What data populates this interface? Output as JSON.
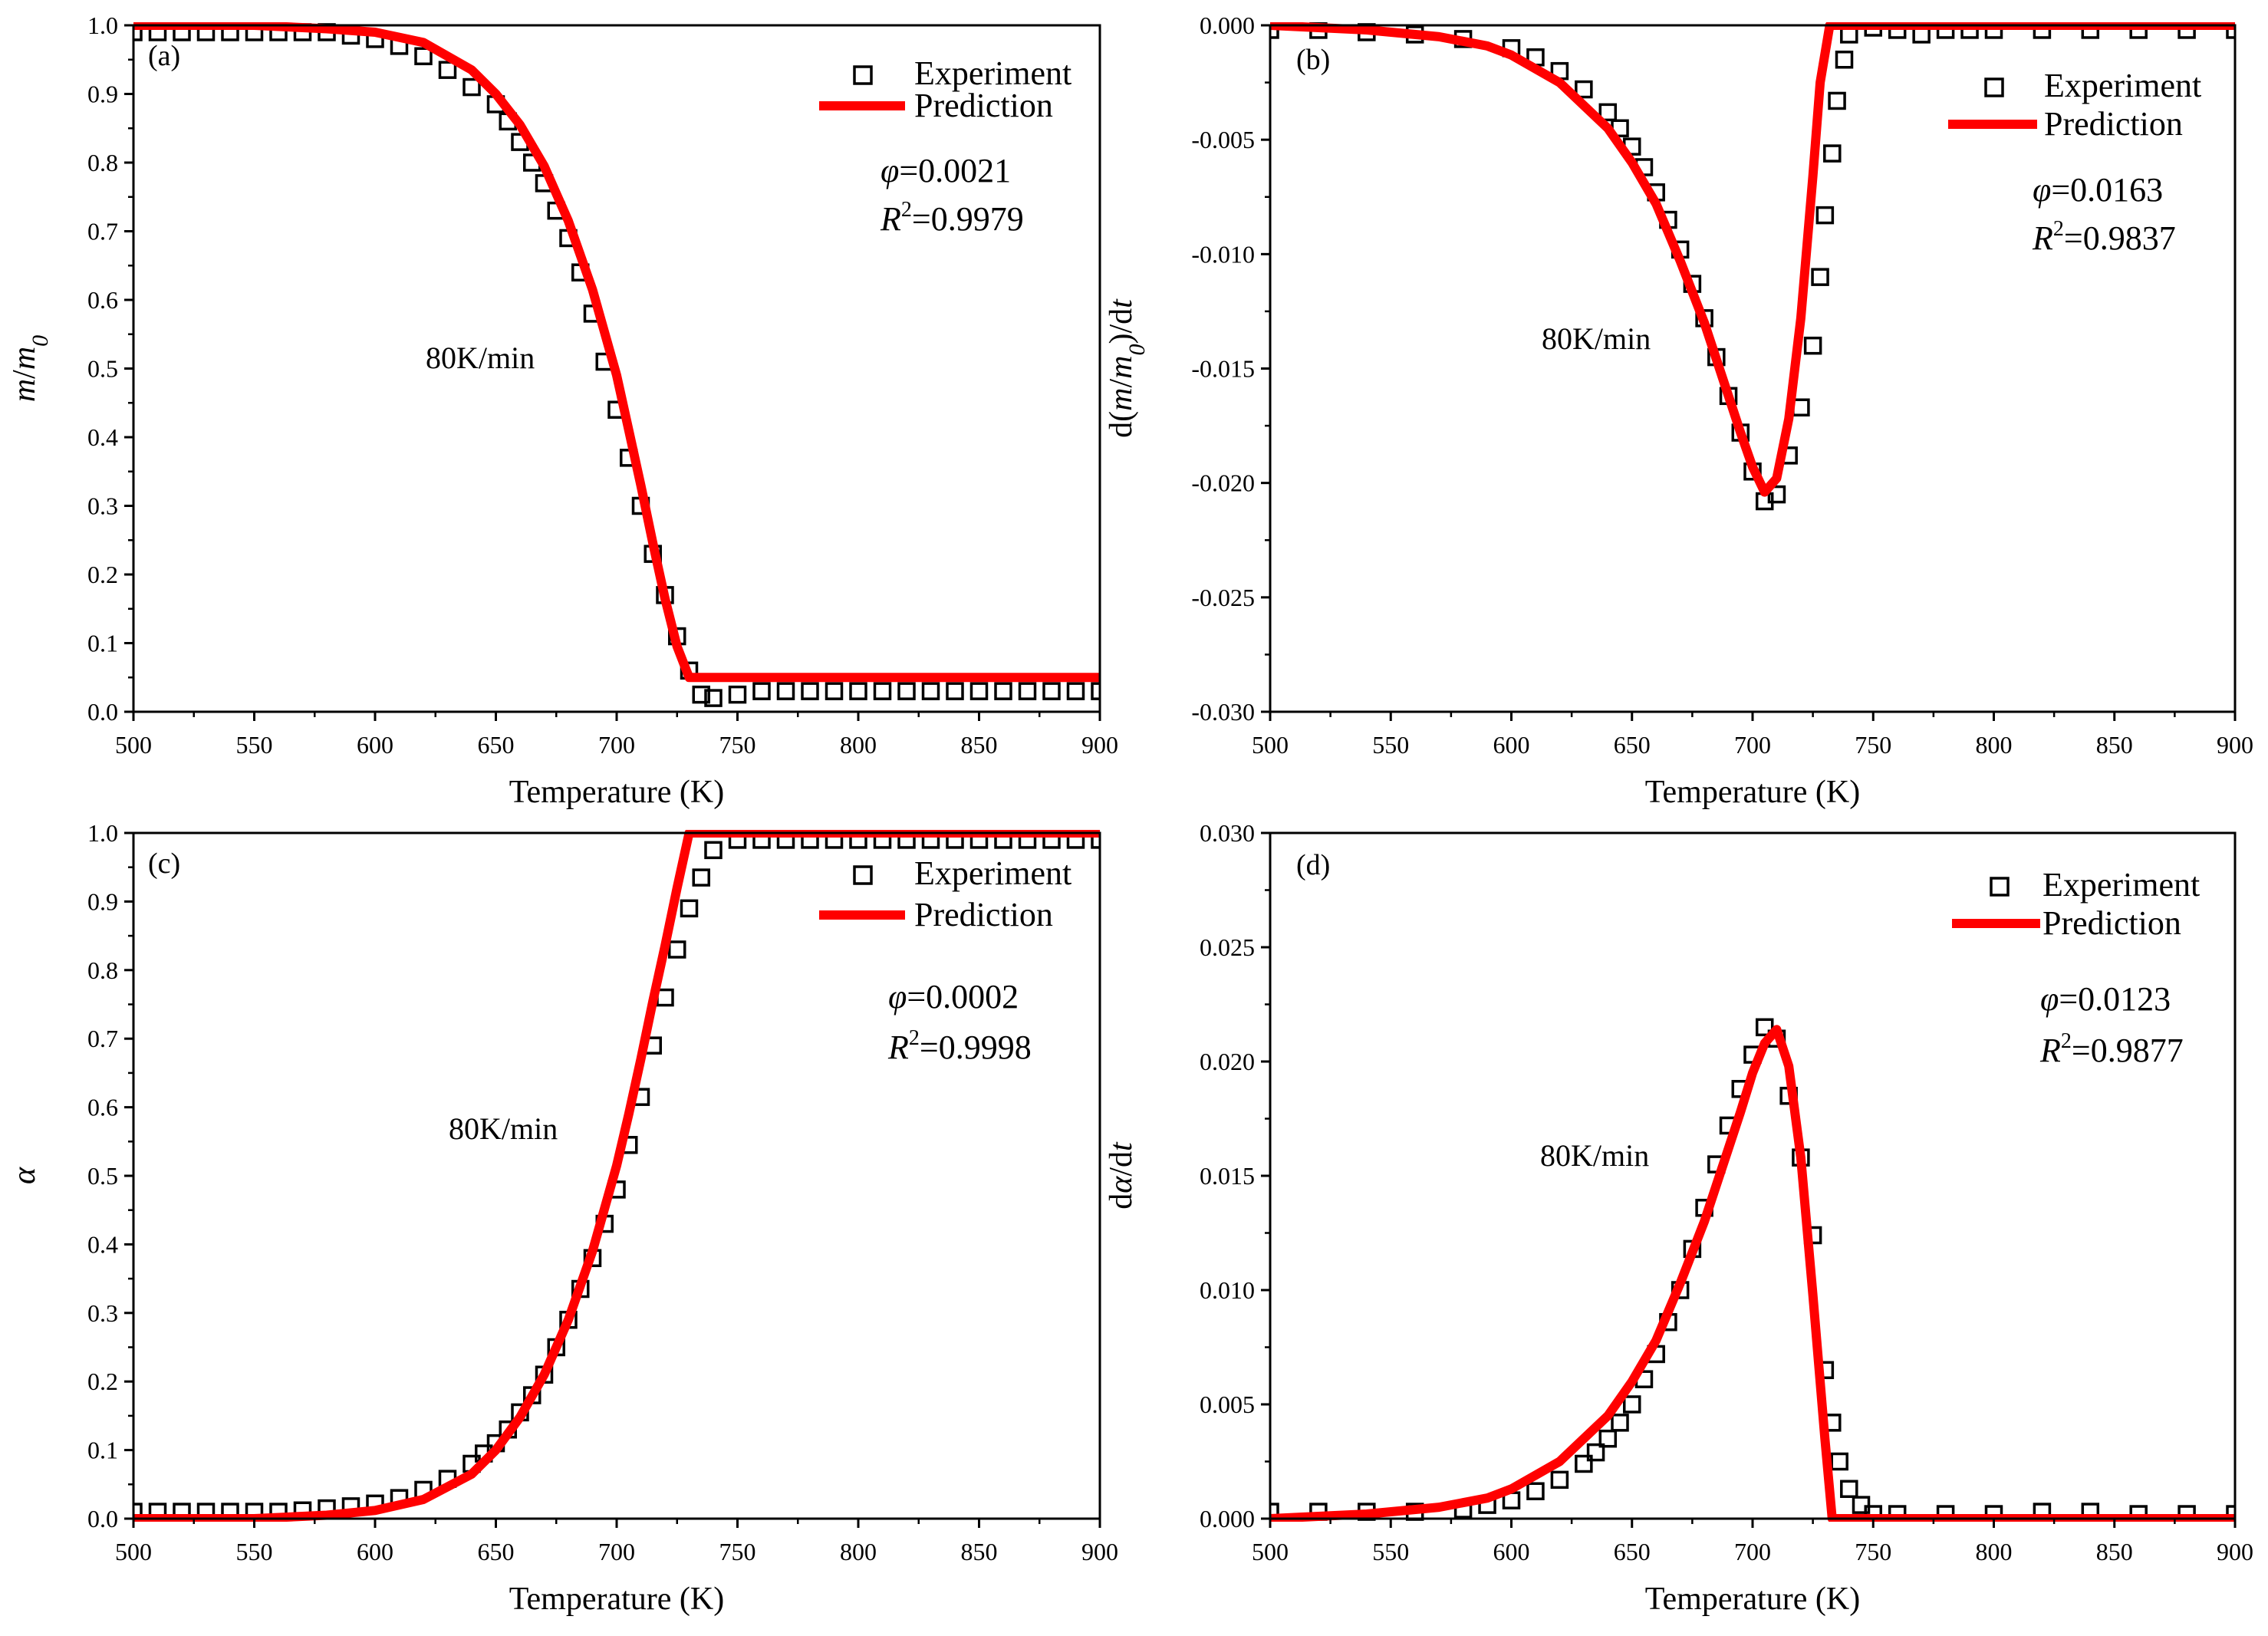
{
  "colors": {
    "experiment": "#000000",
    "prediction": "#ff0000",
    "axis": "#000000"
  },
  "chart_data": [
    {
      "id": "a",
      "type": "scatter+line",
      "panel_label": "(a)",
      "xlabel": "Temperature (K)",
      "ylabel": "m/m0",
      "xlim": [
        500,
        900
      ],
      "ylim": [
        0,
        1.0
      ],
      "xticks": [
        500,
        550,
        600,
        650,
        700,
        750,
        800,
        850,
        900
      ],
      "yticks": [
        0,
        0.1,
        0.2,
        0.3,
        0.4,
        0.5,
        0.6,
        0.7,
        0.8,
        0.9,
        1.0
      ],
      "ytick_labels": [
        "0.0",
        "0.1",
        "0.2",
        "0.3",
        "0.4",
        "0.5",
        "0.6",
        "0.7",
        "0.8",
        "0.9",
        "1.0"
      ],
      "annotation": "80K/min",
      "phi": "φ=0.0021",
      "r2_label": "R",
      "r2_sup": "2",
      "r2_value": "=0.9979",
      "legend": [
        "Experiment",
        "Prediction"
      ],
      "series": [
        {
          "name": "Experiment",
          "style": "square",
          "x": [
            500,
            510,
            520,
            530,
            540,
            550,
            560,
            570,
            580,
            590,
            600,
            610,
            620,
            630,
            640,
            650,
            655,
            660,
            665,
            670,
            675,
            680,
            685,
            690,
            695,
            700,
            705,
            710,
            715,
            720,
            725,
            730,
            735,
            740,
            750,
            760,
            770,
            780,
            790,
            800,
            810,
            820,
            830,
            840,
            850,
            860,
            870,
            880,
            890,
            900
          ],
          "y": [
            0.99,
            0.99,
            0.99,
            0.99,
            0.99,
            0.99,
            0.99,
            0.99,
            0.99,
            0.985,
            0.98,
            0.97,
            0.955,
            0.935,
            0.91,
            0.885,
            0.86,
            0.83,
            0.8,
            0.77,
            0.73,
            0.69,
            0.64,
            0.58,
            0.51,
            0.44,
            0.37,
            0.3,
            0.23,
            0.17,
            0.11,
            0.06,
            0.025,
            0.02,
            0.025,
            0.03,
            0.03,
            0.03,
            0.03,
            0.03,
            0.03,
            0.03,
            0.03,
            0.03,
            0.03,
            0.03,
            0.03,
            0.03,
            0.03,
            0.03
          ]
        },
        {
          "name": "Prediction",
          "style": "line",
          "x": [
            500,
            550,
            580,
            600,
            620,
            640,
            650,
            660,
            670,
            680,
            690,
            700,
            705,
            710,
            715,
            720,
            725,
            730,
            740,
            800,
            900
          ],
          "y": [
            1.0,
            1.0,
            0.995,
            0.99,
            0.975,
            0.935,
            0.9,
            0.855,
            0.795,
            0.715,
            0.615,
            0.49,
            0.41,
            0.33,
            0.245,
            0.165,
            0.095,
            0.05,
            0.05,
            0.05,
            0.05
          ]
        }
      ]
    },
    {
      "id": "b",
      "type": "scatter+line",
      "panel_label": "(b)",
      "xlabel": "Temperature (K)",
      "ylabel": "d(m/m0)/dt",
      "xlim": [
        500,
        900
      ],
      "ylim": [
        -0.03,
        0.0
      ],
      "xticks": [
        500,
        550,
        600,
        650,
        700,
        750,
        800,
        850,
        900
      ],
      "yticks": [
        -0.03,
        -0.025,
        -0.02,
        -0.015,
        -0.01,
        -0.005,
        0.0
      ],
      "ytick_labels": [
        "-0.030",
        "-0.025",
        "-0.020",
        "-0.015",
        "-0.010",
        "-0.005",
        "0.000"
      ],
      "annotation": "80K/min",
      "phi": "φ=0.0163",
      "r2_label": "R",
      "r2_sup": "2",
      "r2_value": "=0.9837",
      "legend": [
        "Experiment",
        "Prediction"
      ],
      "series": [
        {
          "name": "Experiment",
          "style": "square",
          "x": [
            500,
            520,
            540,
            560,
            580,
            600,
            610,
            620,
            630,
            640,
            645,
            650,
            655,
            660,
            665,
            670,
            675,
            680,
            685,
            690,
            695,
            700,
            705,
            710,
            715,
            720,
            725,
            728,
            730,
            733,
            735,
            738,
            740,
            750,
            760,
            770,
            780,
            790,
            800,
            820,
            840,
            860,
            880,
            900
          ],
          "y": [
            -0.0002,
            -0.0002,
            -0.0003,
            -0.0004,
            -0.0006,
            -0.001,
            -0.0014,
            -0.002,
            -0.0028,
            -0.0038,
            -0.0045,
            -0.0053,
            -0.0062,
            -0.0073,
            -0.0085,
            -0.0098,
            -0.0113,
            -0.0128,
            -0.0145,
            -0.0162,
            -0.0178,
            -0.0195,
            -0.0208,
            -0.0205,
            -0.0188,
            -0.0167,
            -0.014,
            -0.011,
            -0.0083,
            -0.0056,
            -0.0033,
            -0.0015,
            -0.0004,
            -0.0001,
            -0.0002,
            -0.0004,
            -0.0002,
            -0.0002,
            -0.0002,
            -0.0002,
            -0.0002,
            -0.0002,
            -0.0002,
            -0.0002
          ]
        },
        {
          "name": "Prediction",
          "style": "line",
          "x": [
            500,
            540,
            570,
            590,
            600,
            620,
            640,
            650,
            660,
            670,
            680,
            690,
            695,
            700,
            705,
            710,
            715,
            720,
            725,
            728,
            732,
            740,
            800,
            900
          ],
          "y": [
            0.0,
            -0.0002,
            -0.0005,
            -0.0009,
            -0.0013,
            -0.0025,
            -0.0045,
            -0.006,
            -0.0078,
            -0.0103,
            -0.013,
            -0.0162,
            -0.0178,
            -0.0193,
            -0.0204,
            -0.0198,
            -0.0172,
            -0.0128,
            -0.0066,
            -0.0025,
            0.0,
            0.0,
            0.0,
            0.0
          ]
        }
      ]
    },
    {
      "id": "c",
      "type": "scatter+line",
      "panel_label": "(c)",
      "xlabel": "Temperature (K)",
      "ylabel": "α",
      "xlim": [
        500,
        900
      ],
      "ylim": [
        0,
        1.0
      ],
      "xticks": [
        500,
        550,
        600,
        650,
        700,
        750,
        800,
        850,
        900
      ],
      "yticks": [
        0,
        0.1,
        0.2,
        0.3,
        0.4,
        0.5,
        0.6,
        0.7,
        0.8,
        0.9,
        1.0
      ],
      "ytick_labels": [
        "0.0",
        "0.1",
        "0.2",
        "0.3",
        "0.4",
        "0.5",
        "0.6",
        "0.7",
        "0.8",
        "0.9",
        "1.0"
      ],
      "annotation": "80K/min",
      "phi": "φ=0.0002",
      "r2_label": "R",
      "r2_sup": "2",
      "r2_value": "=0.9998",
      "legend": [
        "Experiment",
        "Prediction"
      ],
      "series": [
        {
          "name": "Experiment",
          "style": "square",
          "x": [
            500,
            510,
            520,
            530,
            540,
            550,
            560,
            570,
            580,
            590,
            600,
            610,
            620,
            630,
            640,
            645,
            650,
            655,
            660,
            665,
            670,
            675,
            680,
            685,
            690,
            695,
            700,
            705,
            710,
            715,
            720,
            725,
            730,
            735,
            740,
            750,
            760,
            770,
            780,
            790,
            800,
            810,
            820,
            830,
            840,
            850,
            860,
            870,
            880,
            890,
            900
          ],
          "y": [
            0.01,
            0.01,
            0.01,
            0.01,
            0.01,
            0.01,
            0.01,
            0.012,
            0.015,
            0.018,
            0.022,
            0.03,
            0.042,
            0.058,
            0.08,
            0.095,
            0.11,
            0.13,
            0.155,
            0.18,
            0.21,
            0.25,
            0.29,
            0.335,
            0.38,
            0.43,
            0.48,
            0.545,
            0.615,
            0.69,
            0.76,
            0.83,
            0.89,
            0.935,
            0.975,
            0.99,
            0.99,
            0.99,
            0.99,
            0.99,
            0.99,
            0.99,
            0.99,
            0.99,
            0.99,
            0.99,
            0.99,
            0.99,
            0.99,
            0.99,
            0.99
          ]
        },
        {
          "name": "Prediction",
          "style": "line",
          "x": [
            500,
            550,
            580,
            600,
            620,
            640,
            650,
            660,
            670,
            680,
            690,
            700,
            705,
            710,
            715,
            720,
            725,
            730,
            740,
            800,
            900
          ],
          "y": [
            0.0,
            0.0,
            0.005,
            0.012,
            0.028,
            0.065,
            0.1,
            0.148,
            0.21,
            0.29,
            0.39,
            0.515,
            0.59,
            0.67,
            0.755,
            0.835,
            0.92,
            1.0,
            1.0,
            1.0,
            1.0
          ]
        }
      ]
    },
    {
      "id": "d",
      "type": "scatter+line",
      "panel_label": "(d)",
      "xlabel": "Temperature (K)",
      "ylabel": "dα/dt",
      "xlim": [
        500,
        900
      ],
      "ylim": [
        0,
        0.03
      ],
      "xticks": [
        500,
        550,
        600,
        650,
        700,
        750,
        800,
        850,
        900
      ],
      "yticks": [
        0,
        0.005,
        0.01,
        0.015,
        0.02,
        0.025,
        0.03
      ],
      "ytick_labels": [
        "0.000",
        "0.005",
        "0.010",
        "0.015",
        "0.020",
        "0.025",
        "0.030"
      ],
      "annotation": "80K/min",
      "phi": "φ=0.0123",
      "r2_label": "R",
      "r2_sup": "2",
      "r2_value": "=0.9877",
      "legend": [
        "Experiment",
        "Prediction"
      ],
      "series": [
        {
          "name": "Experiment",
          "style": "square",
          "x": [
            500,
            520,
            540,
            560,
            580,
            590,
            600,
            610,
            620,
            630,
            635,
            640,
            645,
            650,
            655,
            660,
            665,
            670,
            675,
            680,
            685,
            690,
            695,
            700,
            705,
            710,
            715,
            720,
            725,
            730,
            733,
            736,
            740,
            745,
            750,
            760,
            780,
            800,
            820,
            840,
            860,
            880,
            900
          ],
          "y": [
            0.0003,
            0.0003,
            0.0003,
            0.0003,
            0.0004,
            0.0006,
            0.0008,
            0.0012,
            0.0017,
            0.0024,
            0.0029,
            0.0035,
            0.0042,
            0.005,
            0.0061,
            0.0072,
            0.0086,
            0.01,
            0.0118,
            0.0136,
            0.0155,
            0.0172,
            0.0188,
            0.0203,
            0.0215,
            0.021,
            0.0185,
            0.0158,
            0.0124,
            0.0065,
            0.0042,
            0.0025,
            0.0013,
            0.0006,
            0.0002,
            0.0002,
            0.0002,
            0.0002,
            0.0003,
            0.0003,
            0.0002,
            0.0002,
            0.0002
          ]
        },
        {
          "name": "Prediction",
          "style": "line",
          "x": [
            500,
            540,
            570,
            590,
            600,
            620,
            640,
            650,
            660,
            670,
            680,
            690,
            695,
            700,
            705,
            710,
            715,
            720,
            725,
            730,
            733,
            740,
            800,
            900
          ],
          "y": [
            0.0,
            0.0002,
            0.0005,
            0.0009,
            0.0013,
            0.0025,
            0.0045,
            0.006,
            0.0078,
            0.0103,
            0.013,
            0.0162,
            0.0178,
            0.0195,
            0.0208,
            0.0214,
            0.0198,
            0.0158,
            0.0098,
            0.0035,
            0.0,
            0.0,
            0.0,
            0.0
          ]
        }
      ]
    }
  ]
}
